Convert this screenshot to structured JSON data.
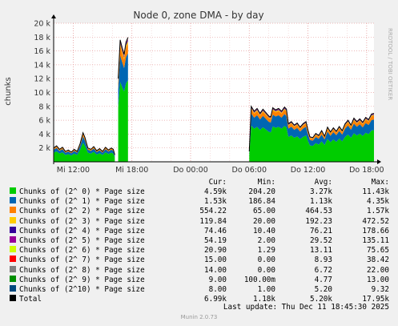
{
  "chart_data": {
    "type": "area",
    "title": "Node 0, zone DMA - by day",
    "ylabel": "chunks",
    "ylim": [
      0,
      20000
    ],
    "yticks": [
      {
        "value": 2000,
        "label": "2 k"
      },
      {
        "value": 4000,
        "label": "4 k"
      },
      {
        "value": 6000,
        "label": "6 k"
      },
      {
        "value": 8000,
        "label": "8 k"
      },
      {
        "value": 10000,
        "label": "10 k"
      },
      {
        "value": 12000,
        "label": "12 k"
      },
      {
        "value": 14000,
        "label": "14 k"
      },
      {
        "value": 16000,
        "label": "16 k"
      },
      {
        "value": 18000,
        "label": "18 k"
      },
      {
        "value": 20000,
        "label": "20 k"
      }
    ],
    "x_range": [
      "Wed 10:00",
      "Thu 18:45"
    ],
    "xticks": [
      {
        "label": "Mi 12:00",
        "t": 2
      },
      {
        "label": "Mi 18:00",
        "t": 8
      },
      {
        "label": "Do 00:00",
        "t": 14
      },
      {
        "label": "Do 06:00",
        "t": 20
      },
      {
        "label": "Do 12:00",
        "t": 26
      },
      {
        "label": "Do 18:00",
        "t": 32
      }
    ],
    "t_max": 32.75,
    "grid": true,
    "series_colors": [
      "#00cc00",
      "#0066b3",
      "#ff8000",
      "#ffcc00",
      "#330099",
      "#990099",
      "#ccff00",
      "#ff0000",
      "#808080",
      "#008f00",
      "#00487d",
      "#000000"
    ],
    "segments": [
      {
        "points": [
          {
            "t": 0.0,
            "total": 2000
          },
          {
            "t": 0.3,
            "total": 2300
          },
          {
            "t": 0.6,
            "total": 1800
          },
          {
            "t": 0.9,
            "total": 2100
          },
          {
            "t": 1.2,
            "total": 1500
          },
          {
            "t": 1.5,
            "total": 1700
          },
          {
            "t": 1.8,
            "total": 1400
          },
          {
            "t": 2.1,
            "total": 1800
          },
          {
            "t": 2.4,
            "total": 1500
          },
          {
            "t": 2.7,
            "total": 2600
          },
          {
            "t": 3.0,
            "total": 4200
          },
          {
            "t": 3.2,
            "total": 3500
          },
          {
            "t": 3.5,
            "total": 2000
          },
          {
            "t": 3.8,
            "total": 1800
          },
          {
            "t": 4.1,
            "total": 2200
          },
          {
            "t": 4.4,
            "total": 1600
          },
          {
            "t": 4.7,
            "total": 1900
          },
          {
            "t": 5.0,
            "total": 1500
          },
          {
            "t": 5.3,
            "total": 2100
          },
          {
            "t": 5.6,
            "total": 1700
          },
          {
            "t": 5.9,
            "total": 2000
          },
          {
            "t": 6.1,
            "total": 1800
          },
          {
            "t": 6.25,
            "total": 1000
          }
        ]
      },
      {
        "points": [
          {
            "t": 6.6,
            "total": 12000
          },
          {
            "t": 6.8,
            "total": 17600
          },
          {
            "t": 7.0,
            "total": 16500
          },
          {
            "t": 7.2,
            "total": 15500
          },
          {
            "t": 7.4,
            "total": 17300
          },
          {
            "t": 7.6,
            "total": 17950
          }
        ]
      },
      {
        "points": [
          {
            "t": 20.0,
            "total": 1500
          },
          {
            "t": 20.2,
            "total": 8000
          },
          {
            "t": 20.5,
            "total": 7300
          },
          {
            "t": 20.8,
            "total": 7700
          },
          {
            "t": 21.1,
            "total": 7000
          },
          {
            "t": 21.4,
            "total": 7600
          },
          {
            "t": 21.7,
            "total": 7100
          },
          {
            "t": 22.0,
            "total": 6600
          },
          {
            "t": 22.2,
            "total": 6500
          },
          {
            "t": 22.4,
            "total": 7800
          },
          {
            "t": 22.7,
            "total": 7500
          },
          {
            "t": 23.0,
            "total": 7700
          },
          {
            "t": 23.3,
            "total": 7300
          },
          {
            "t": 23.6,
            "total": 7900
          },
          {
            "t": 23.8,
            "total": 7600
          },
          {
            "t": 24.0,
            "total": 5500
          },
          {
            "t": 24.3,
            "total": 5800
          },
          {
            "t": 24.6,
            "total": 5300
          },
          {
            "t": 24.9,
            "total": 5600
          },
          {
            "t": 25.2,
            "total": 5000
          },
          {
            "t": 25.5,
            "total": 5500
          },
          {
            "t": 25.8,
            "total": 5800
          },
          {
            "t": 26.0,
            "total": 4600
          },
          {
            "t": 26.2,
            "total": 3600
          },
          {
            "t": 26.5,
            "total": 3500
          },
          {
            "t": 26.8,
            "total": 4100
          },
          {
            "t": 27.1,
            "total": 3800
          },
          {
            "t": 27.4,
            "total": 4500
          },
          {
            "t": 27.7,
            "total": 3700
          },
          {
            "t": 28.0,
            "total": 5000
          },
          {
            "t": 28.3,
            "total": 4300
          },
          {
            "t": 28.6,
            "total": 4900
          },
          {
            "t": 28.9,
            "total": 4400
          },
          {
            "t": 29.2,
            "total": 5100
          },
          {
            "t": 29.5,
            "total": 4500
          },
          {
            "t": 29.8,
            "total": 5500
          },
          {
            "t": 30.1,
            "total": 6000
          },
          {
            "t": 30.4,
            "total": 5300
          },
          {
            "t": 30.7,
            "total": 6300
          },
          {
            "t": 31.0,
            "total": 5800
          },
          {
            "t": 31.3,
            "total": 6200
          },
          {
            "t": 31.6,
            "total": 5700
          },
          {
            "t": 31.9,
            "total": 6400
          },
          {
            "t": 32.2,
            "total": 6100
          },
          {
            "t": 32.5,
            "total": 6900
          },
          {
            "t": 32.75,
            "total": 6990
          }
        ]
      }
    ],
    "series": [
      {
        "name": "Chunks of (2^ 0) * Page size",
        "cur": "4.59k",
        "min": "204.20",
        "avg": "3.27k",
        "max": "11.43k"
      },
      {
        "name": "Chunks of (2^ 1) * Page size",
        "cur": "1.53k",
        "min": "186.84",
        "avg": "1.13k",
        "max": "4.35k"
      },
      {
        "name": "Chunks of (2^ 2) * Page size",
        "cur": "554.22",
        "min": "65.00",
        "avg": "464.53",
        "max": "1.57k"
      },
      {
        "name": "Chunks of (2^ 3) * Page size",
        "cur": "119.84",
        "min": "20.00",
        "avg": "192.23",
        "max": "472.52"
      },
      {
        "name": "Chunks of (2^ 4) * Page size",
        "cur": "74.46",
        "min": "10.40",
        "avg": "76.21",
        "max": "178.66"
      },
      {
        "name": "Chunks of (2^ 5) * Page size",
        "cur": "54.19",
        "min": "2.00",
        "avg": "29.52",
        "max": "135.11"
      },
      {
        "name": "Chunks of (2^ 6) * Page size",
        "cur": "20.90",
        "min": "1.29",
        "avg": "13.11",
        "max": "75.65"
      },
      {
        "name": "Chunks of (2^ 7) * Page size",
        "cur": "15.00",
        "min": "0.00",
        "avg": "8.93",
        "max": "38.42"
      },
      {
        "name": "Chunks of (2^ 8) * Page size",
        "cur": "14.00",
        "min": "0.00",
        "avg": "6.72",
        "max": "22.00"
      },
      {
        "name": "Chunks of (2^ 9) * Page size",
        "cur": "9.00",
        "min": "100.00m",
        "avg": "4.77",
        "max": "13.00"
      },
      {
        "name": "Chunks of (2^10) * Page size",
        "cur": "8.00",
        "min": "1.00",
        "avg": "5.20",
        "max": "9.32"
      },
      {
        "name": "Total",
        "cur": "6.99k",
        "min": "1.18k",
        "avg": "5.20k",
        "max": "17.95k"
      }
    ]
  },
  "legend": {
    "headers": {
      "cur": "Cur:",
      "min": "Min:",
      "avg": "Avg:",
      "max": "Max:"
    }
  },
  "last_update": "Last update: Thu Dec 11 18:45:30 2025",
  "watermark": "RRDTOOL / TOBI OETIKER",
  "footer": "Munin 2.0.73"
}
